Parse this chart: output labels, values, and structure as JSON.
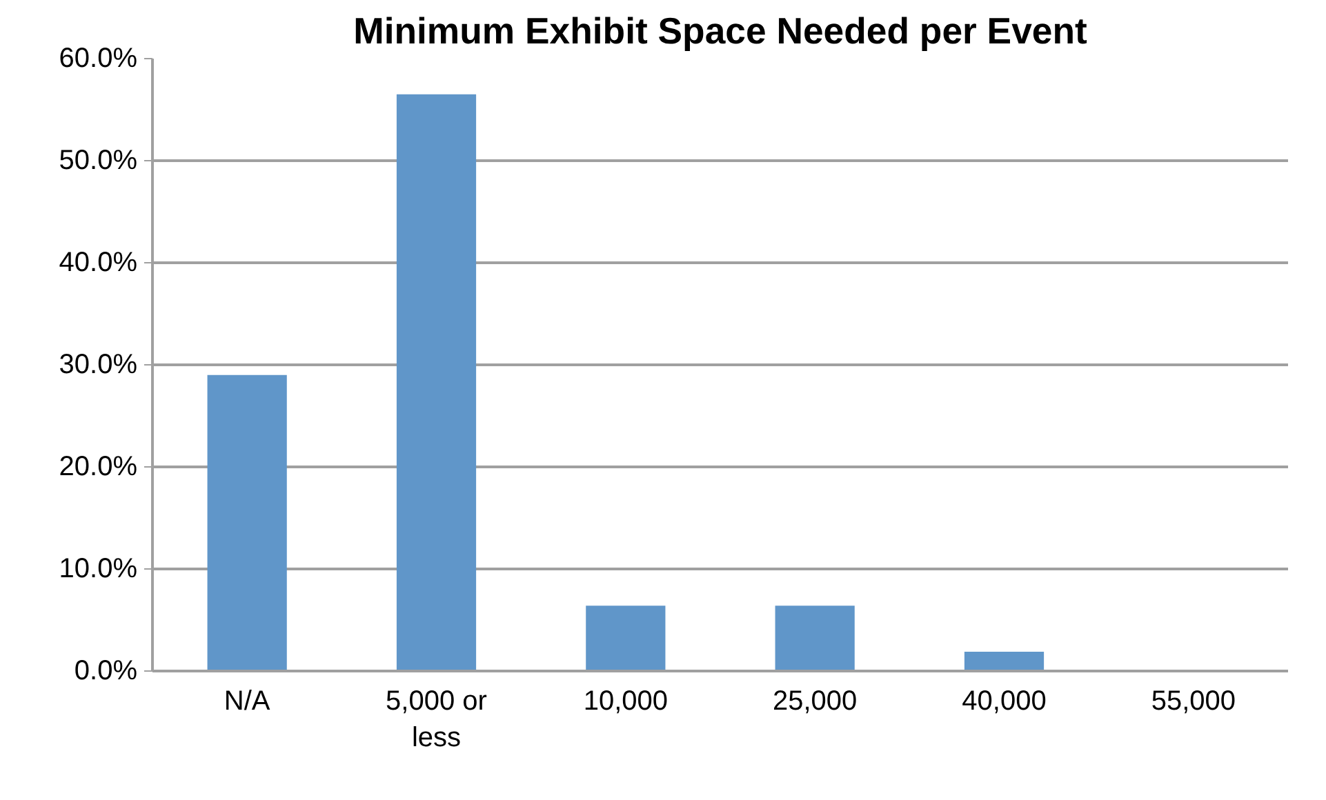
{
  "chart_data": {
    "type": "bar",
    "title": "Minimum Exhibit Space Needed per Event",
    "categories": [
      "N/A",
      "5,000 or\nless",
      "10,000",
      "25,000",
      "40,000",
      "55,000"
    ],
    "values": [
      29.0,
      56.5,
      6.4,
      6.4,
      1.9,
      0
    ],
    "color": "#6096c9",
    "ylim": [
      0,
      60
    ],
    "yticks": [
      {
        "value": 0,
        "label": "0.0%"
      },
      {
        "value": 10,
        "label": "10.0%"
      },
      {
        "value": 20,
        "label": "20.0%"
      },
      {
        "value": 30,
        "label": "30.0%"
      },
      {
        "value": 40,
        "label": "40.0%"
      },
      {
        "value": 50,
        "label": "50.0%"
      },
      {
        "value": 60,
        "label": "60.0%"
      }
    ],
    "grid": "y"
  }
}
